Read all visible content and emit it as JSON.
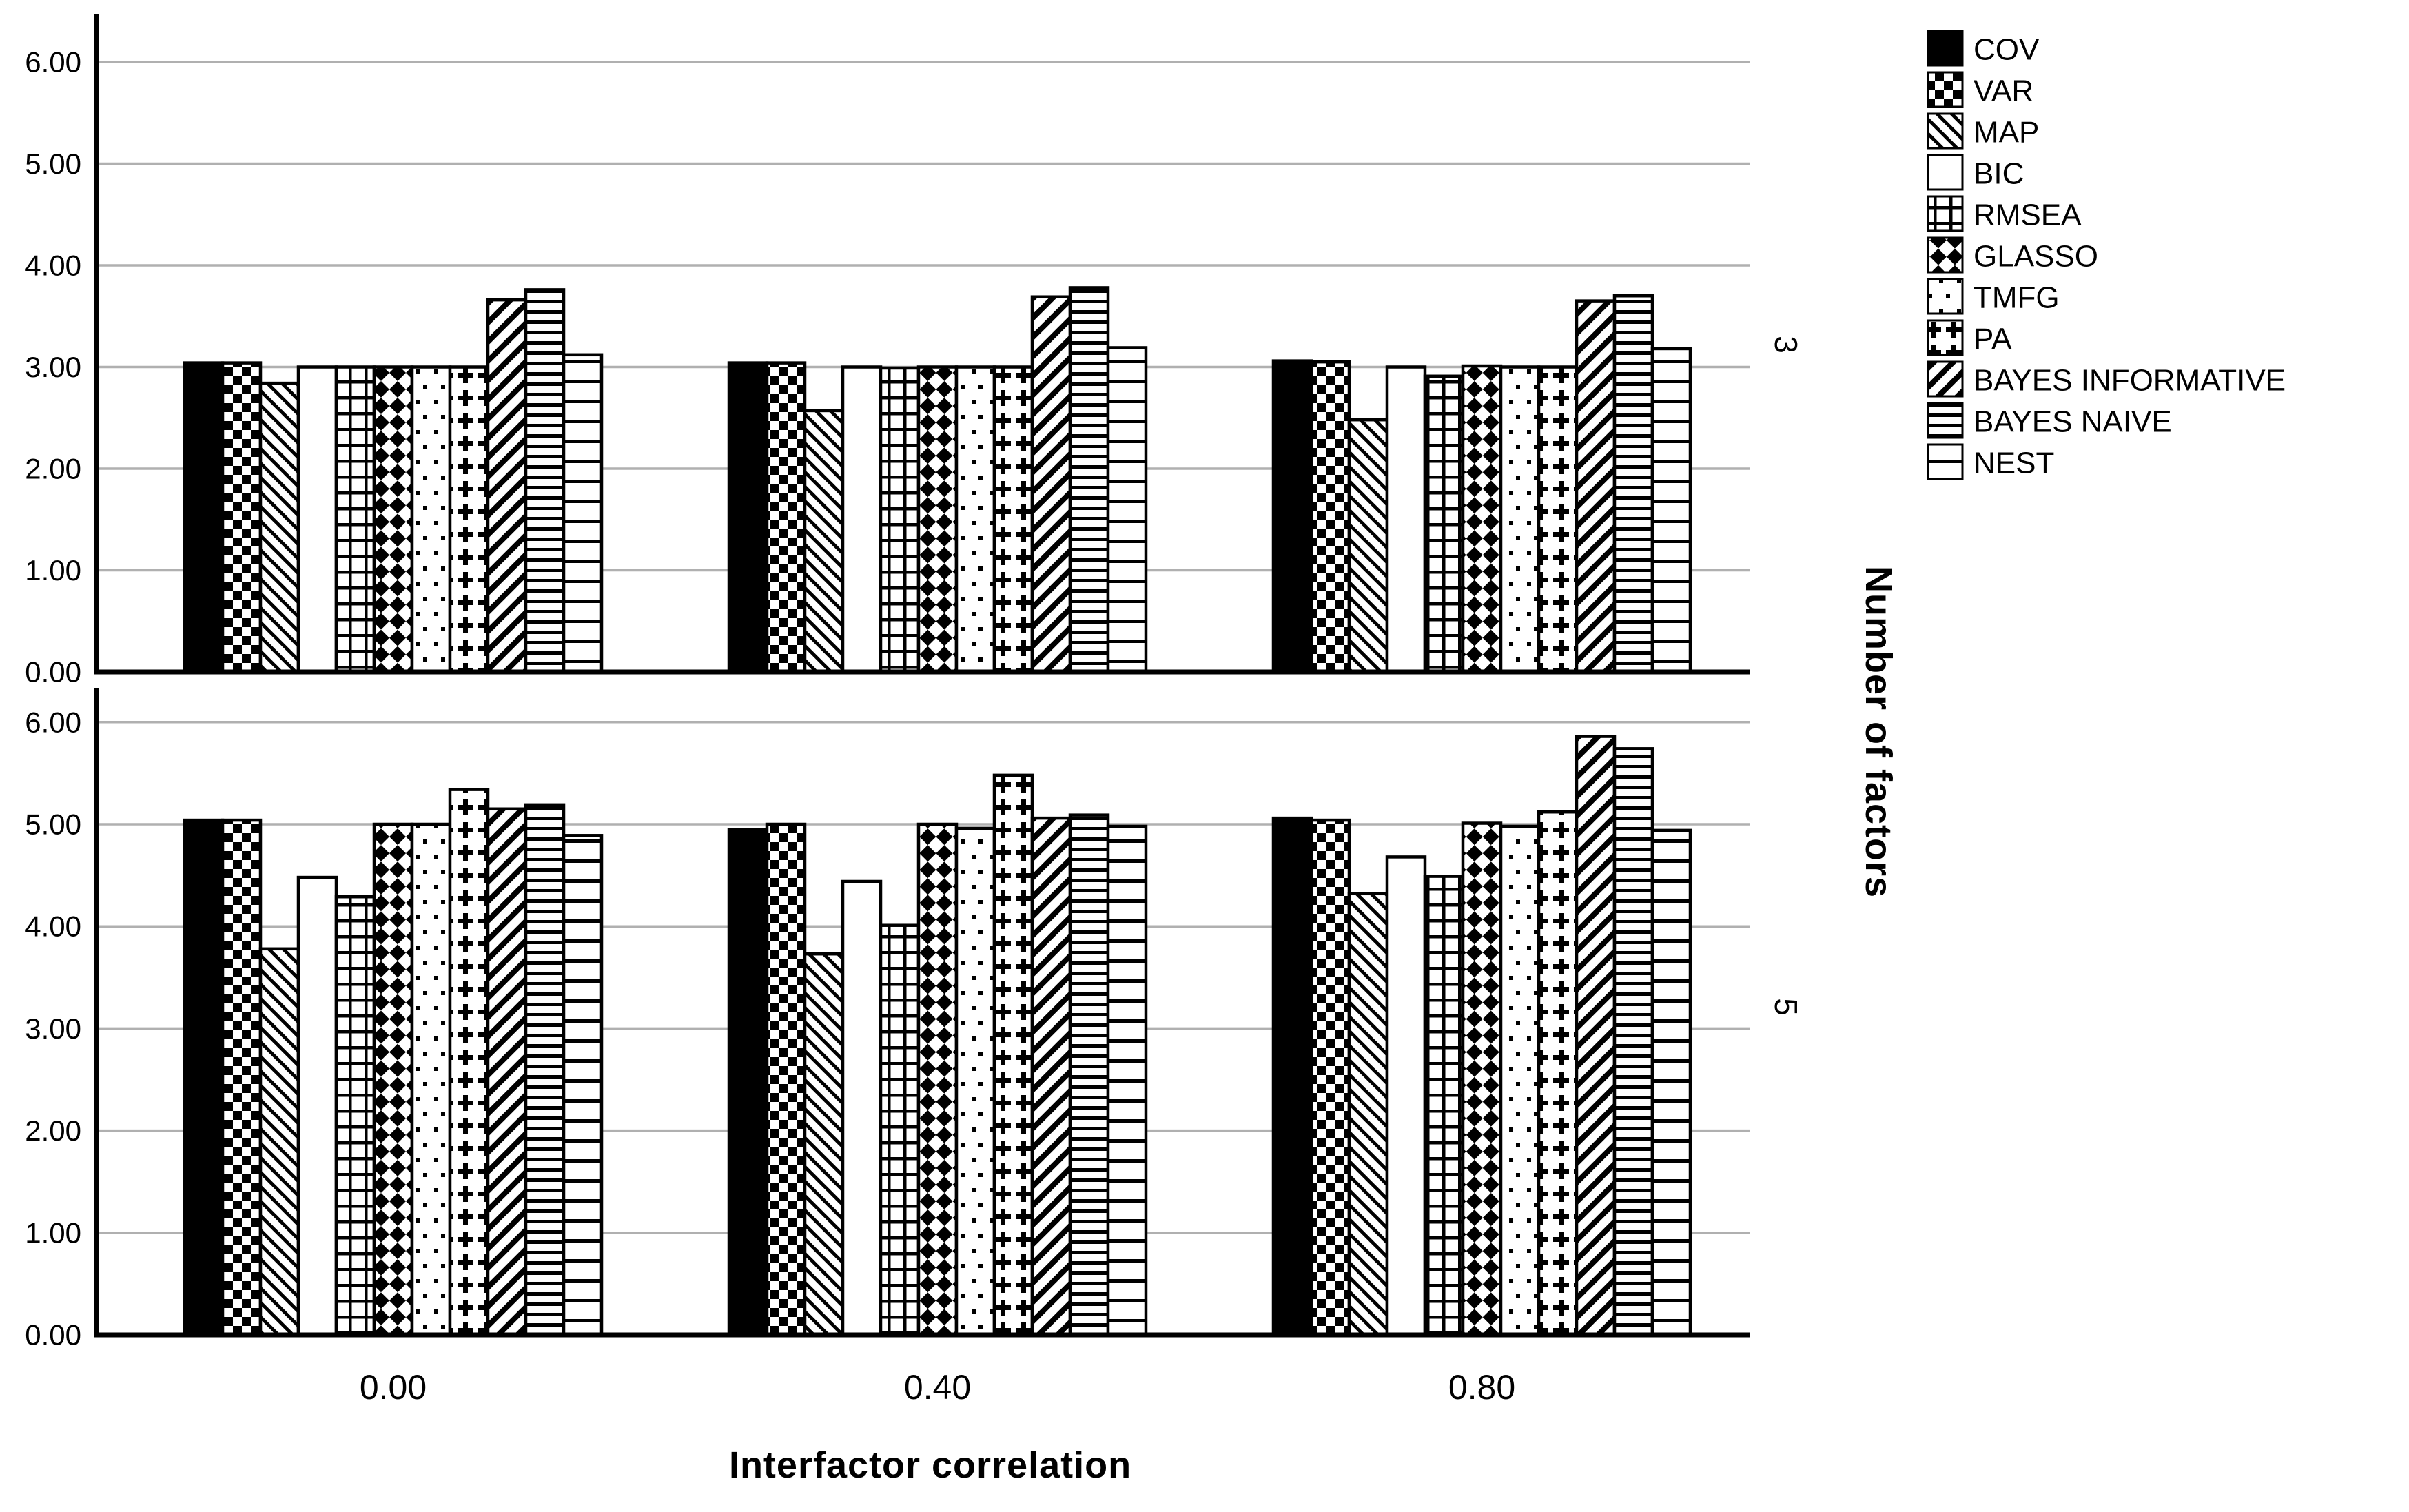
{
  "chart_data": {
    "type": "bar",
    "title": "",
    "xlabel": "Interfactor correlation",
    "right_axis_title": "Number of factors",
    "categories": [
      "0.00",
      "0.40",
      "0.80"
    ],
    "y_tick_labels": [
      "6.00",
      "5.00",
      "4.00",
      "3.00",
      "2.00",
      "1.00",
      "0.00"
    ],
    "y_tick_values": [
      6,
      5,
      4,
      3,
      2,
      1,
      0
    ],
    "ylim": [
      0,
      6.4
    ],
    "grid": true,
    "legend_position": "top-right",
    "colors": {
      "foreground": "#000000",
      "background": "#ffffff",
      "gridline": "#b0b0b0"
    },
    "series": [
      {
        "name": "COV",
        "pattern": "solid-black"
      },
      {
        "name": "VAR",
        "pattern": "checkerboard"
      },
      {
        "name": "MAP",
        "pattern": "diagonal-down"
      },
      {
        "name": "BIC",
        "pattern": "plain-white"
      },
      {
        "name": "RMSEA",
        "pattern": "grid"
      },
      {
        "name": "GLASSO",
        "pattern": "diamond-checker"
      },
      {
        "name": "TMFG",
        "pattern": "dots"
      },
      {
        "name": "PA",
        "pattern": "plus"
      },
      {
        "name": "BAYES INFORMATIVE",
        "pattern": "diagonal-up"
      },
      {
        "name": "BAYES NAIVE",
        "pattern": "horizontal-dense"
      },
      {
        "name": "NEST",
        "pattern": "horizontal-sparse"
      }
    ],
    "panels": [
      {
        "facet_label": "3",
        "values_by_category": [
          [
            3.04,
            3.04,
            2.84,
            3.0,
            3.0,
            3.0,
            3.0,
            3.0,
            3.66,
            3.76,
            3.12
          ],
          [
            3.04,
            3.04,
            2.57,
            3.0,
            2.99,
            3.0,
            3.0,
            3.0,
            3.69,
            3.78,
            3.19
          ],
          [
            3.06,
            3.05,
            2.48,
            3.0,
            2.91,
            3.01,
            3.0,
            3.0,
            3.65,
            3.7,
            3.18
          ]
        ]
      },
      {
        "facet_label": "5",
        "values_by_category": [
          [
            5.04,
            5.04,
            3.78,
            4.48,
            4.29,
            5.0,
            5.0,
            5.34,
            5.15,
            5.19,
            4.89
          ],
          [
            4.95,
            5.0,
            3.73,
            4.44,
            4.01,
            5.0,
            4.96,
            5.48,
            5.06,
            5.09,
            4.98
          ],
          [
            5.06,
            5.04,
            4.32,
            4.68,
            4.49,
            5.01,
            4.98,
            5.12,
            5.86,
            5.74,
            4.94
          ]
        ]
      }
    ]
  }
}
